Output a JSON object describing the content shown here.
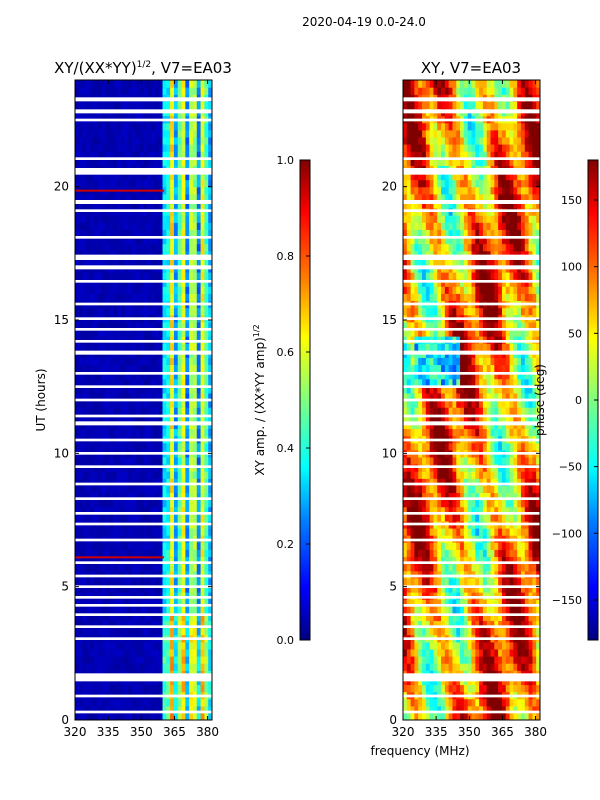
{
  "figure": {
    "suptitle": "2020-04-19 0.0-24.0",
    "xlabel_shared": "frequency (MHz)"
  },
  "colors": {
    "jet": [
      "#000080",
      "#0000ff",
      "#0080ff",
      "#00ffff",
      "#80ff80",
      "#ffff00",
      "#ff8000",
      "#ff0000",
      "#800000"
    ],
    "gap": "#ffffff"
  },
  "chart_data": [
    {
      "type": "heatmap",
      "title_prefix": "XY/(XX*YY)",
      "title_exponent": "1/2",
      "title_suffix": ", V7=EA03",
      "xlabel": "",
      "ylabel": "UT (hours)",
      "xlim": [
        320,
        382
      ],
      "ylim": [
        0,
        24
      ],
      "xticks": [
        320,
        335,
        350,
        365,
        380
      ],
      "yticks": [
        0,
        5,
        10,
        15,
        20
      ],
      "colorbar": {
        "label_prefix": "XY amp. / (XX*YY amp)",
        "label_exponent": "1/2",
        "vmin": 0.0,
        "vmax": 1.0,
        "ticks": [
          "0.0",
          "0.2",
          "0.4",
          "0.6",
          "0.8",
          "1.0"
        ]
      },
      "value_description": "background ~0.05 below 360 MHz; banded ~0.3-0.6 between 360 and 382 MHz",
      "background_value": 0.05,
      "band_start_mhz": 360,
      "band_value_range": [
        0.25,
        0.65
      ],
      "rfi_lines_ut": [
        6.1,
        19.85
      ]
    },
    {
      "type": "heatmap",
      "title_prefix": "XY, V7=EA03",
      "title_exponent": "",
      "title_suffix": "",
      "xlabel": "frequency (MHz)",
      "ylabel": "",
      "xlim": [
        320,
        382
      ],
      "ylim": [
        0,
        24
      ],
      "xticks": [
        320,
        335,
        350,
        365,
        380
      ],
      "yticks": [
        0,
        5,
        10,
        15,
        20
      ],
      "colorbar": {
        "label_prefix": "phase (deg)",
        "label_exponent": "",
        "vmin": -180,
        "vmax": 180,
        "ticks": [
          "−150",
          "−100",
          "−50",
          "0",
          "50",
          "100",
          "150"
        ],
        "tick_values": [
          -150,
          -100,
          -50,
          0,
          50,
          100,
          150
        ]
      },
      "value_description": "phase wrapping between -180 and 180 deg, mostly red/orange with cyan/green stripes"
    }
  ],
  "gaps_ut": [
    [
      23.2,
      23.35
    ],
    [
      22.75,
      22.9
    ],
    [
      22.45,
      22.55
    ],
    [
      21.0,
      21.1
    ],
    [
      20.45,
      20.7
    ],
    [
      19.35,
      19.5
    ],
    [
      19.05,
      19.15
    ],
    [
      18.05,
      18.15
    ],
    [
      17.25,
      17.45
    ],
    [
      16.9,
      17.05
    ],
    [
      16.4,
      16.5
    ],
    [
      15.55,
      15.65
    ],
    [
      15.0,
      15.1
    ],
    [
      14.6,
      14.7
    ],
    [
      14.15,
      14.25
    ],
    [
      13.7,
      13.85
    ],
    [
      12.95,
      13.05
    ],
    [
      12.45,
      12.55
    ],
    [
      11.95,
      12.05
    ],
    [
      11.35,
      11.45
    ],
    [
      11.05,
      11.2
    ],
    [
      10.45,
      10.55
    ],
    [
      9.95,
      10.05
    ],
    [
      9.45,
      9.55
    ],
    [
      8.8,
      8.9
    ],
    [
      8.25,
      8.35
    ],
    [
      7.7,
      7.8
    ],
    [
      7.3,
      7.4
    ],
    [
      6.7,
      6.8
    ],
    [
      5.85,
      5.95
    ],
    [
      5.35,
      5.45
    ],
    [
      4.95,
      5.05
    ],
    [
      4.55,
      4.65
    ],
    [
      4.25,
      4.35
    ],
    [
      3.9,
      4.0
    ],
    [
      3.45,
      3.55
    ],
    [
      3.0,
      3.1
    ],
    [
      1.45,
      1.75
    ],
    [
      0.85,
      0.95
    ],
    [
      0.25,
      0.35
    ]
  ]
}
